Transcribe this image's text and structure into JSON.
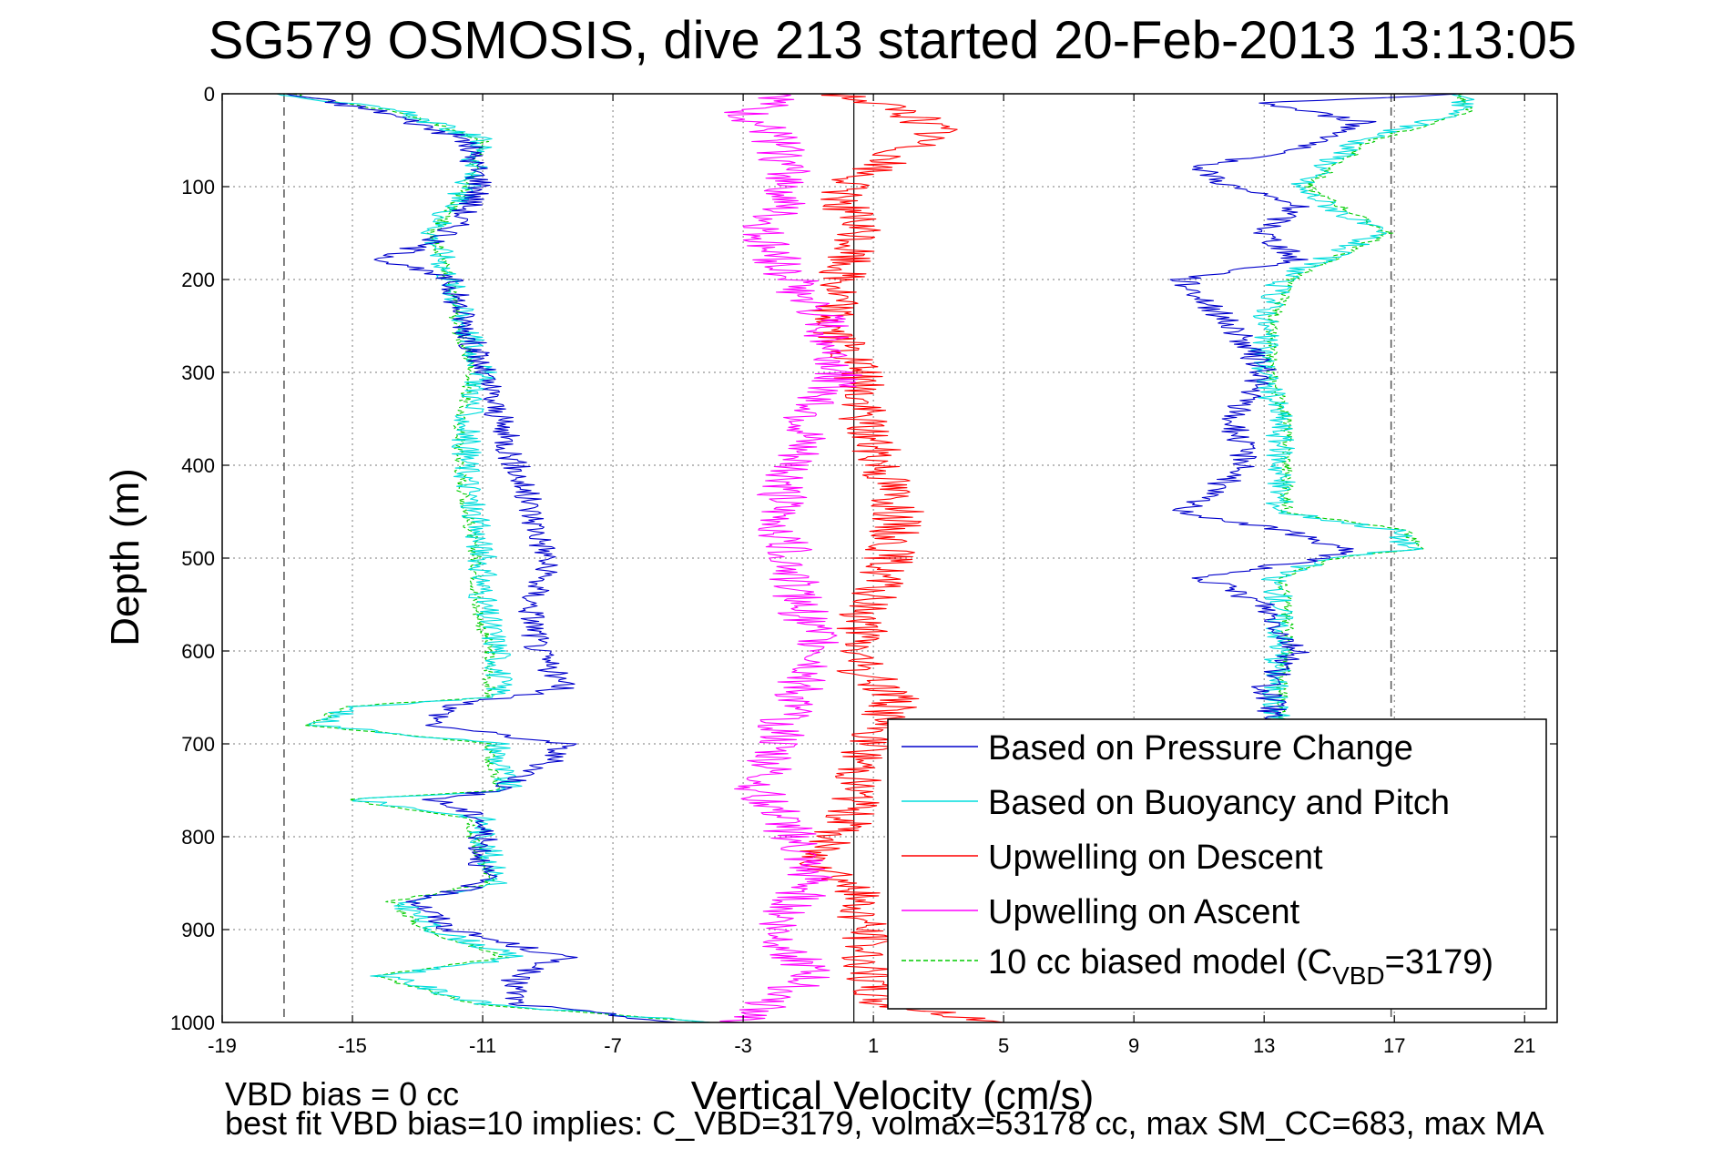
{
  "chart_data": {
    "type": "line",
    "title": "SG579 OSMOSIS, dive 213 started 20-Feb-2013 13:13:05",
    "xlabel": "Vertical Velocity (cm/s)",
    "ylabel": "Depth (m)",
    "xlim": [
      -19,
      22
    ],
    "ylim": [
      0,
      1000
    ],
    "y_reversed": true,
    "xticks": [
      -19,
      -15,
      -11,
      -7,
      -3,
      1,
      5,
      9,
      13,
      17,
      21
    ],
    "yticks": [
      0,
      100,
      200,
      300,
      400,
      500,
      600,
      700,
      800,
      900,
      1000
    ],
    "grid": true,
    "legend_location": "lower-right",
    "reference_lines": [
      {
        "x": -17.1,
        "style": "dashed",
        "color": "#555555"
      },
      {
        "x": 0.4,
        "style": "solid",
        "color": "#000000"
      },
      {
        "x": 16.9,
        "style": "dashed",
        "color": "#555555"
      }
    ],
    "series": [
      {
        "name": "Based on Pressure Change",
        "color": "#0000cc",
        "style": "solid",
        "descent": {
          "depth": [
            0,
            20,
            50,
            100,
            150,
            180,
            200,
            250,
            300,
            350,
            400,
            450,
            500,
            550,
            600,
            640,
            660,
            680,
            700,
            720,
            750,
            760,
            780,
            800,
            850,
            870,
            900,
            930,
            950,
            980,
            1000
          ],
          "v": [
            -17,
            -14,
            -11.5,
            -11,
            -12,
            -14,
            -12,
            -11.5,
            -11,
            -10.5,
            -10,
            -9.5,
            -9,
            -9.5,
            -9.3,
            -8.5,
            -12,
            -12.5,
            -8.5,
            -9,
            -10.5,
            -12.5,
            -11,
            -11,
            -11,
            -13,
            -12,
            -8.5,
            -10,
            -10,
            -5
          ]
        },
        "ascent": {
          "depth": [
            0,
            10,
            30,
            50,
            80,
            100,
            120,
            150,
            180,
            200,
            250,
            300,
            350,
            400,
            450,
            470,
            490,
            500,
            520,
            550,
            600,
            640,
            660,
            680,
            700
          ],
          "v": [
            19,
            13,
            16,
            15,
            11,
            12,
            14,
            13,
            14,
            10.5,
            12,
            13,
            12,
            12.5,
            10.5,
            13.5,
            15.5,
            15,
            11,
            13,
            14,
            13,
            13.3,
            13,
            13
          ]
        }
      },
      {
        "name": "Based on Buoyancy and Pitch",
        "color": "#00dddd",
        "style": "solid",
        "descent": {
          "depth": [
            0,
            20,
            50,
            100,
            150,
            200,
            250,
            300,
            350,
            400,
            450,
            500,
            550,
            600,
            650,
            660,
            680,
            700,
            720,
            750,
            760,
            780,
            800,
            850,
            870,
            900,
            930,
            950,
            980,
            1000
          ],
          "v": [
            -17,
            -13.5,
            -11,
            -11.5,
            -12.5,
            -12,
            -11.5,
            -11,
            -11.5,
            -11.5,
            -11.3,
            -11,
            -11,
            -10.5,
            -10.5,
            -15,
            -16,
            -10.5,
            -10.5,
            -10.2,
            -15,
            -11,
            -11,
            -10.5,
            -13.5,
            -12.5,
            -10,
            -14,
            -11,
            -4
          ]
        },
        "ascent": {
          "depth": [
            0,
            20,
            50,
            100,
            150,
            200,
            250,
            300,
            350,
            400,
            450,
            470,
            490,
            500,
            520,
            550,
            600,
            650,
            680
          ],
          "v": [
            19,
            19,
            16,
            14,
            16.5,
            13.5,
            13,
            13,
            13.5,
            13.5,
            13.5,
            17,
            17.5,
            15,
            13.3,
            13.5,
            13.5,
            13.3,
            13.5
          ]
        }
      },
      {
        "name": "Upwelling on Descent",
        "color": "#ff0000",
        "style": "solid",
        "depth": [
          0,
          20,
          40,
          60,
          100,
          150,
          200,
          250,
          300,
          350,
          400,
          450,
          500,
          550,
          600,
          620,
          650,
          700,
          750,
          780,
          820,
          850,
          900,
          950,
          980,
          1000
        ],
        "v": [
          0,
          2,
          3,
          2,
          0,
          0.5,
          0,
          -0.3,
          0.5,
          0.7,
          1.3,
          1.8,
          1.5,
          0.8,
          0.5,
          0.5,
          1.8,
          0.8,
          0.5,
          0.3,
          -0.8,
          0.3,
          0.8,
          0.8,
          1.2,
          5
        ]
      },
      {
        "name": "Upwelling on Ascent",
        "color": "#ff00ff",
        "style": "solid",
        "depth": [
          0,
          20,
          50,
          100,
          150,
          200,
          250,
          300,
          350,
          400,
          450,
          500,
          550,
          600,
          650,
          700,
          750,
          800,
          850,
          900,
          950,
          1000
        ],
        "v": [
          -1.5,
          -3,
          -2,
          -1.5,
          -2.5,
          -1.5,
          -0.5,
          0,
          -1,
          -1.5,
          -2,
          -1.5,
          -1.3,
          -0.5,
          -1.5,
          -2,
          -2.5,
          -1.5,
          -1,
          -2,
          -1,
          -3
        ]
      },
      {
        "name": "10 cc biased model (C_VBD=3179)",
        "color": "#00cc00",
        "style": "dashed",
        "descent": {
          "depth": [
            0,
            20,
            50,
            100,
            150,
            200,
            250,
            300,
            350,
            400,
            450,
            500,
            550,
            600,
            650,
            660,
            680,
            700,
            720,
            750,
            760,
            780,
            800,
            850,
            870,
            900,
            930,
            950,
            980,
            1000
          ],
          "v": [
            -17,
            -13.5,
            -11,
            -11.5,
            -12.5,
            -12,
            -11.8,
            -11.3,
            -11.7,
            -11.7,
            -11.5,
            -11.2,
            -11.2,
            -10.8,
            -10.8,
            -15.3,
            -16.3,
            -10.8,
            -10.8,
            -10.5,
            -15.3,
            -11.3,
            -11.3,
            -10.8,
            -13.8,
            -12.8,
            -10.3,
            -14.3,
            -11.3,
            -4
          ]
        },
        "ascent": {
          "depth": [
            0,
            20,
            50,
            100,
            150,
            200,
            250,
            300,
            350,
            400,
            450,
            470,
            490,
            500,
            520,
            550,
            600,
            650,
            680
          ],
          "v": [
            19,
            19.3,
            16.3,
            14.3,
            16.8,
            13.8,
            13.2,
            13.2,
            13.7,
            13.7,
            13.7,
            17.3,
            17.8,
            15.3,
            13.5,
            13.7,
            13.7,
            13.5,
            13.7
          ]
        }
      }
    ],
    "legend": [
      {
        "label": "Based on Pressure Change",
        "color": "#0000cc",
        "dashed": false
      },
      {
        "label": "Based on Buoyancy and Pitch",
        "color": "#00dddd",
        "dashed": false
      },
      {
        "label": "Upwelling on Descent",
        "color": "#ff0000",
        "dashed": false
      },
      {
        "label": "Upwelling on Ascent",
        "color": "#ff00ff",
        "dashed": false
      },
      {
        "label_main": "10 cc biased model (C",
        "label_sub": "VBD",
        "label_tail": "=3179)",
        "color": "#00cc00",
        "dashed": true
      }
    ]
  },
  "notes": {
    "bias_line": "VBD bias = 0 cc",
    "fit_line": "best fit VBD bias=10 implies: C_VBD=3179, volmax=53178 cc, max SM_CC=683, max MA"
  }
}
